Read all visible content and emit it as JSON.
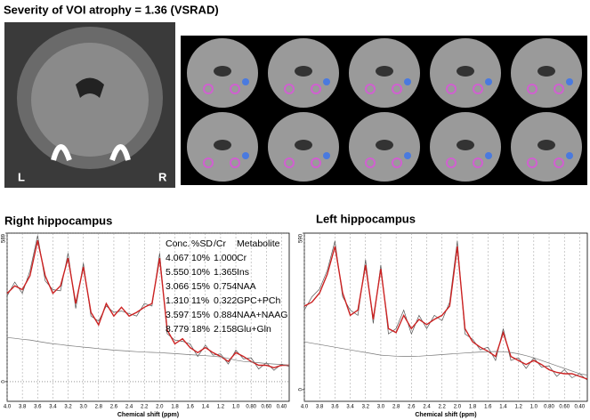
{
  "title": "Severity of VOI atrophy = 1.36 (VSRAD)",
  "image_labels": [
    "L",
    "R"
  ],
  "metabolite_table": {
    "header": [
      "Conc.",
      "%SD",
      "/Cr",
      "Metabolite"
    ],
    "rows": [
      [
        "4.067",
        "10%",
        "1.000",
        "Cr"
      ],
      [
        "5.550",
        "10%",
        "1.365",
        "Ins"
      ],
      [
        "3.066",
        "15%",
        "0.754",
        "NAA"
      ],
      [
        "1.310",
        "11%",
        "0.322",
        "GPC+PCh"
      ],
      [
        "3.597",
        "15%",
        "0.884",
        "NAA+NAAG"
      ],
      [
        "8.779",
        "18%",
        "2.158",
        "Glu+Gln"
      ]
    ]
  },
  "chart_data": [
    {
      "type": "line",
      "title": "Right hippocampus",
      "xlabel": "Chemical shift (ppm)",
      "x": [
        4.0,
        3.9,
        3.8,
        3.7,
        3.6,
        3.5,
        3.4,
        3.3,
        3.2,
        3.1,
        3.0,
        2.9,
        2.8,
        2.7,
        2.6,
        2.5,
        2.4,
        2.3,
        2.2,
        2.1,
        2.0,
        1.9,
        1.8,
        1.7,
        1.6,
        1.5,
        1.4,
        1.3,
        1.2,
        1.1,
        1.0,
        0.9,
        0.8,
        0.7,
        0.6,
        0.5,
        0.4,
        0.3
      ],
      "series": [
        {
          "color": "#555555",
          "values": [
            340,
            395,
            350,
            440,
            580,
            400,
            365,
            360,
            510,
            290,
            470,
            260,
            240,
            300,
            275,
            280,
            270,
            260,
            310,
            300,
            510,
            190,
            165,
            160,
            150,
            100,
            145,
            105,
            110,
            70,
            125,
            90,
            95,
            50,
            75,
            45,
            70,
            60
          ]
        },
        {
          "color": "#cc2222",
          "values": [
            350,
            380,
            365,
            420,
            560,
            420,
            350,
            380,
            490,
            310,
            455,
            275,
            225,
            310,
            260,
            295,
            260,
            275,
            295,
            310,
            490,
            205,
            150,
            170,
            135,
            115,
            135,
            115,
            100,
            80,
            115,
            100,
            80,
            65,
            65,
            55,
            65,
            65
          ]
        },
        {
          "color": "#777777",
          "values": [
            175,
            172,
            168,
            165,
            160,
            155,
            150,
            147,
            143,
            140,
            137,
            134,
            131,
            128,
            125,
            123,
            121,
            119,
            117,
            116,
            115,
            113,
            111,
            109,
            107,
            105,
            103,
            101,
            98,
            92,
            85,
            80,
            78,
            75,
            72,
            70,
            68,
            65
          ]
        }
      ],
      "xlim": [
        4.0,
        0.3
      ],
      "xticks": [
        {
          "value": 4.0,
          "label": "4.0"
        },
        3.8,
        3.6,
        3.4,
        3.2,
        {
          "value": 3.0,
          "label": "3.0"
        },
        2.8,
        2.6,
        2.4,
        2.2,
        {
          "value": 2.0,
          "label": "2.0"
        },
        1.8,
        1.6,
        1.4,
        1.2,
        {
          "value": 1.0,
          "label": "1.0"
        },
        {
          "value": 0.8,
          "label": "0.80"
        },
        {
          "value": 0.6,
          "label": "0.60"
        },
        {
          "value": 0.4,
          "label": "0.40"
        }
      ],
      "ylim": [
        -78,
        589
      ],
      "yticks": [
        0,
        589
      ],
      "xgrid": true,
      "ygrid": true
    },
    {
      "type": "line",
      "title": "Left hippocampus",
      "xlabel": "Chemical shift (ppm)",
      "x": [
        4.0,
        3.9,
        3.8,
        3.7,
        3.6,
        3.5,
        3.4,
        3.3,
        3.2,
        3.1,
        3.0,
        2.9,
        2.8,
        2.7,
        2.6,
        2.5,
        2.4,
        2.3,
        2.2,
        2.1,
        2.0,
        1.9,
        1.8,
        1.7,
        1.6,
        1.5,
        1.4,
        1.3,
        1.2,
        1.1,
        1.0,
        0.9,
        0.8,
        0.7,
        0.6,
        0.5,
        0.4,
        0.3
      ],
      "series": [
        {
          "color": "#555555",
          "values": [
            300,
            350,
            380,
            450,
            560,
            350,
            300,
            280,
            490,
            250,
            470,
            210,
            230,
            300,
            210,
            280,
            230,
            280,
            260,
            330,
            560,
            210,
            190,
            150,
            160,
            110,
            230,
            110,
            120,
            80,
            120,
            85,
            90,
            50,
            75,
            45,
            60,
            35
          ]
        },
        {
          "color": "#cc2222",
          "values": [
            315,
            330,
            365,
            435,
            540,
            365,
            280,
            300,
            470,
            265,
            455,
            230,
            215,
            280,
            230,
            265,
            245,
            265,
            280,
            315,
            540,
            230,
            180,
            160,
            145,
            125,
            215,
            125,
            110,
            95,
            110,
            95,
            75,
            65,
            60,
            60,
            50,
            40
          ]
        },
        {
          "color": "#777777",
          "values": [
            180,
            175,
            170,
            165,
            160,
            155,
            150,
            145,
            140,
            135,
            130,
            128,
            126,
            125,
            125,
            126,
            128,
            130,
            132,
            134,
            136,
            138,
            140,
            142,
            143,
            144,
            143,
            140,
            135,
            128,
            120,
            110,
            100,
            90,
            80,
            70,
            60,
            55
          ]
        }
      ],
      "xlim": [
        4.0,
        0.3
      ],
      "xticks": [
        {
          "value": 4.0,
          "label": "4.0"
        },
        3.8,
        3.6,
        3.4,
        3.2,
        {
          "value": 3.0,
          "label": "3.0"
        },
        2.8,
        2.6,
        2.4,
        2.2,
        {
          "value": 2.0,
          "label": "2.0"
        },
        1.8,
        1.6,
        1.4,
        1.2,
        {
          "value": 1.0,
          "label": "1.0"
        },
        {
          "value": 0.8,
          "label": "0.80"
        },
        {
          "value": 0.6,
          "label": "0.60"
        },
        {
          "value": 0.4,
          "label": "0.40"
        }
      ],
      "ylim": [
        -44,
        590
      ],
      "yticks": [
        0,
        590
      ],
      "xgrid": true,
      "ygrid": false
    }
  ]
}
